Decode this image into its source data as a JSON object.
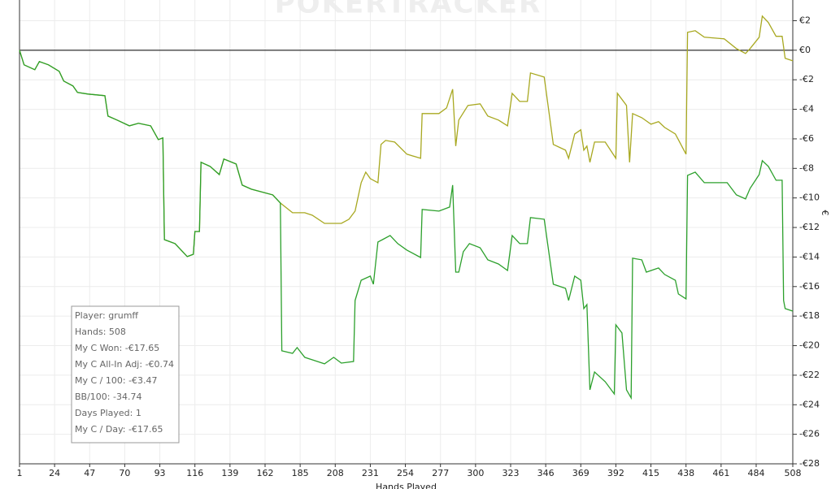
{
  "chart_data": {
    "type": "line",
    "watermark": "POKERTRACKER",
    "xlabel": "Hands Played",
    "ylabel": "€",
    "xlim": [
      1,
      508
    ],
    "ylim": [
      -28,
      3.4
    ],
    "xticks": [
      1,
      24,
      47,
      70,
      93,
      116,
      139,
      162,
      185,
      208,
      231,
      254,
      277,
      300,
      323,
      346,
      369,
      392,
      415,
      438,
      461,
      484,
      508
    ],
    "yticks": [
      {
        "value": 2,
        "label": "€2"
      },
      {
        "value": 0,
        "label": "€0"
      },
      {
        "value": -2,
        "label": "-€2"
      },
      {
        "value": -4,
        "label": "-€4"
      },
      {
        "value": -6,
        "label": "-€6"
      },
      {
        "value": -8,
        "label": "-€8"
      },
      {
        "value": -10,
        "label": "-€10"
      },
      {
        "value": -12,
        "label": "-€12"
      },
      {
        "value": -14,
        "label": "-€14"
      },
      {
        "value": -16,
        "label": "-€16"
      },
      {
        "value": -18,
        "label": "-€18"
      },
      {
        "value": -20,
        "label": "-€20"
      },
      {
        "value": -22,
        "label": "-€22"
      },
      {
        "value": -24,
        "label": "-€24"
      },
      {
        "value": -26,
        "label": "-€26"
      },
      {
        "value": -28,
        "label": "-€28"
      }
    ],
    "grid": true,
    "series": [
      {
        "color": "#a8a820",
        "x": [
          1,
          4,
          11,
          14,
          20,
          27,
          30,
          36,
          39,
          46,
          57,
          59,
          65,
          73,
          79,
          87,
          92,
          95,
          96,
          103,
          108,
          111,
          115,
          116,
          119,
          120,
          126,
          132,
          135,
          143,
          147,
          153,
          167,
          172,
          180,
          188,
          193,
          201,
          212,
          217,
          221,
          225,
          228,
          231,
          236,
          238,
          241,
          247,
          255,
          264,
          265,
          276,
          281,
          285,
          287,
          289,
          295,
          303,
          308,
          315,
          321,
          324,
          329,
          334,
          336,
          345,
          351,
          359,
          361,
          365,
          369,
          371,
          373,
          375,
          378,
          385,
          392,
          393,
          399,
          401,
          403,
          409,
          415,
          420,
          424,
          431,
          438,
          439,
          444,
          450,
          463,
          471,
          477,
          480,
          486,
          488,
          492,
          497,
          501,
          503,
          508
        ],
        "values": [
          0,
          -0.99,
          -1.32,
          -0.77,
          -0.99,
          -1.43,
          -2.09,
          -2.42,
          -2.86,
          -2.97,
          -3.08,
          -4.46,
          -4.73,
          -5.12,
          -4.95,
          -5.12,
          -6.05,
          -5.94,
          -12.82,
          -13.09,
          -13.64,
          -13.97,
          -13.81,
          -12.27,
          -12.27,
          -7.59,
          -7.87,
          -8.42,
          -7.37,
          -7.7,
          -9.13,
          -9.41,
          -9.79,
          -10.34,
          -11,
          -11,
          -11.17,
          -11.72,
          -11.72,
          -11.44,
          -10.89,
          -8.97,
          -8.25,
          -8.69,
          -8.97,
          -6.38,
          -6.11,
          -6.22,
          -7.04,
          -7.32,
          -4.29,
          -4.29,
          -3.91,
          -2.64,
          -6.49,
          -4.73,
          -3.74,
          -3.63,
          -4.46,
          -4.73,
          -5.12,
          -2.92,
          -3.47,
          -3.47,
          -1.54,
          -1.82,
          -6.38,
          -6.77,
          -7.32,
          -5.67,
          -5.39,
          -6.77,
          -6.49,
          -7.59,
          -6.22,
          -6.22,
          -7.32,
          -2.92,
          -3.74,
          -7.59,
          -4.29,
          -4.57,
          -5.01,
          -4.84,
          -5.23,
          -5.67,
          -7.04,
          1.21,
          1.32,
          0.88,
          0.77,
          0.11,
          -0.22,
          0.11,
          0.88,
          2.31,
          1.87,
          0.94,
          0.94,
          -0.55,
          -0.72
        ]
      },
      {
        "color": "#2ca02c",
        "x": [
          1,
          4,
          11,
          14,
          20,
          27,
          30,
          36,
          39,
          46,
          57,
          59,
          65,
          73,
          79,
          87,
          92,
          95,
          96,
          103,
          108,
          111,
          115,
          116,
          119,
          120,
          126,
          132,
          135,
          143,
          147,
          153,
          167,
          172,
          173,
          180,
          183,
          188,
          201,
          207,
          212,
          220,
          221,
          225,
          231,
          233,
          236,
          239,
          244,
          249,
          255,
          264,
          265,
          276,
          283,
          285,
          287,
          289,
          292,
          296,
          303,
          308,
          315,
          321,
          324,
          329,
          334,
          336,
          345,
          351,
          359,
          361,
          365,
          369,
          371,
          373,
          375,
          378,
          385,
          391,
          392,
          396,
          399,
          402,
          403,
          409,
          412,
          420,
          424,
          431,
          433,
          438,
          439,
          444,
          450,
          465,
          471,
          477,
          480,
          486,
          488,
          492,
          497,
          501,
          502,
          503,
          508
        ],
        "values": [
          0,
          -0.99,
          -1.32,
          -0.77,
          -0.99,
          -1.43,
          -2.09,
          -2.42,
          -2.86,
          -2.97,
          -3.08,
          -4.46,
          -4.73,
          -5.12,
          -4.95,
          -5.12,
          -6.05,
          -5.94,
          -12.82,
          -13.09,
          -13.64,
          -13.97,
          -13.81,
          -12.27,
          -12.27,
          -7.59,
          -7.87,
          -8.42,
          -7.37,
          -7.7,
          -9.13,
          -9.41,
          -9.79,
          -10.34,
          -20.35,
          -20.52,
          -20.13,
          -20.79,
          -21.23,
          -20.79,
          -21.18,
          -21.07,
          -16.94,
          -15.57,
          -15.29,
          -15.84,
          -12.98,
          -12.82,
          -12.54,
          -13.09,
          -13.53,
          -14.03,
          -10.78,
          -10.89,
          -10.62,
          -9.13,
          -15.02,
          -15.02,
          -13.64,
          -13.09,
          -13.37,
          -14.19,
          -14.47,
          -14.91,
          -12.54,
          -13.09,
          -13.09,
          -11.33,
          -11.44,
          -15.84,
          -16.12,
          -16.94,
          -15.29,
          -15.57,
          -17.49,
          -17.22,
          -22.99,
          -21.78,
          -22.44,
          -23.27,
          -18.59,
          -19.14,
          -22.99,
          -23.54,
          -14.08,
          -14.19,
          -15.02,
          -14.74,
          -15.18,
          -15.57,
          -16.5,
          -16.83,
          -8.47,
          -8.25,
          -8.97,
          -8.97,
          -9.79,
          -10.07,
          -9.35,
          -8.42,
          -7.48,
          -7.87,
          -8.8,
          -8.8,
          -16.94,
          -17.49,
          -17.66
        ]
      }
    ],
    "stats": [
      "Player: grumff",
      "Hands: 508",
      "My C Won: -€17.65",
      "My C All-In Adj: -€0.74",
      "My C / 100: -€3.47",
      "BB/100: -34.74",
      "Days Played: 1",
      "My C / Day: -€17.65"
    ]
  }
}
